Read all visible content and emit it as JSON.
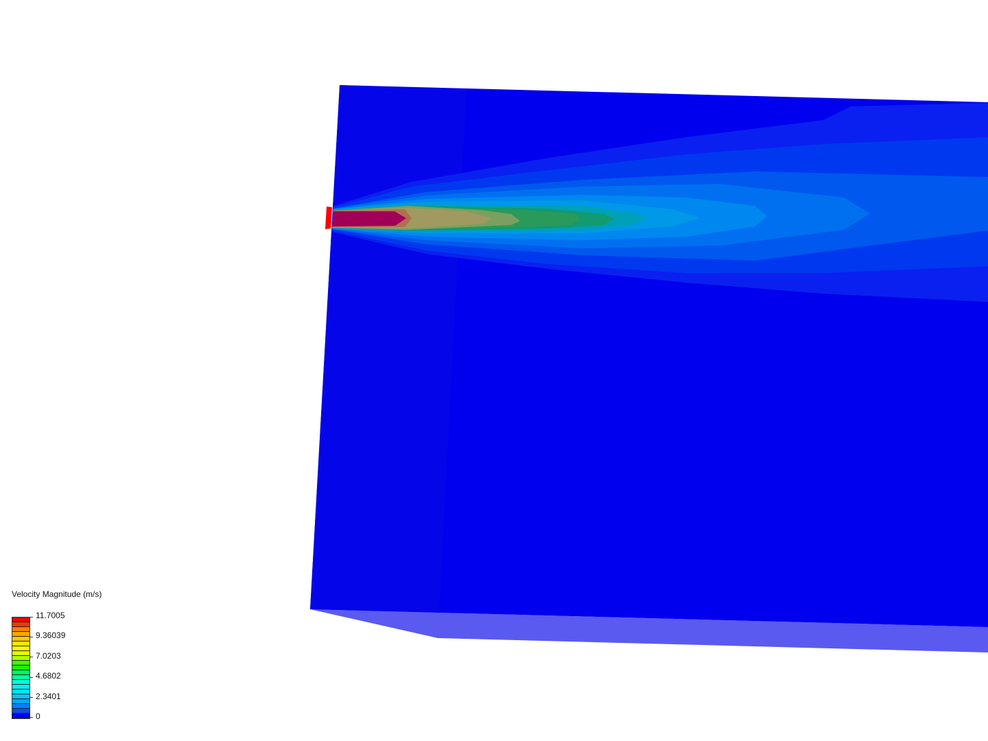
{
  "legend": {
    "title": "Velocity Magnitude (m/s)",
    "labels": [
      "11.7005",
      "9.36039",
      "7.0203",
      "4.6802",
      "2.3401",
      "0"
    ],
    "range": [
      0,
      11.7005
    ],
    "colors": [
      "#ff0000",
      "#ee3a00",
      "#ff7f00",
      "#ffa500",
      "#ffc800",
      "#ffe600",
      "#ffff00",
      "#e0ff00",
      "#b0ff00",
      "#40ff00",
      "#20ee00",
      "#00ff60",
      "#00ffa0",
      "#00ffd8",
      "#00f0ff",
      "#00e0ff",
      "#00c8ff",
      "#00a8ff",
      "#0080ff",
      "#0050ff",
      "#0000ff"
    ]
  },
  "scene": {
    "domain_color": "#0000ee",
    "bottom_face_color": "#5a5af0",
    "inlet_color": "#ff0000",
    "core_color": "#a00058"
  }
}
